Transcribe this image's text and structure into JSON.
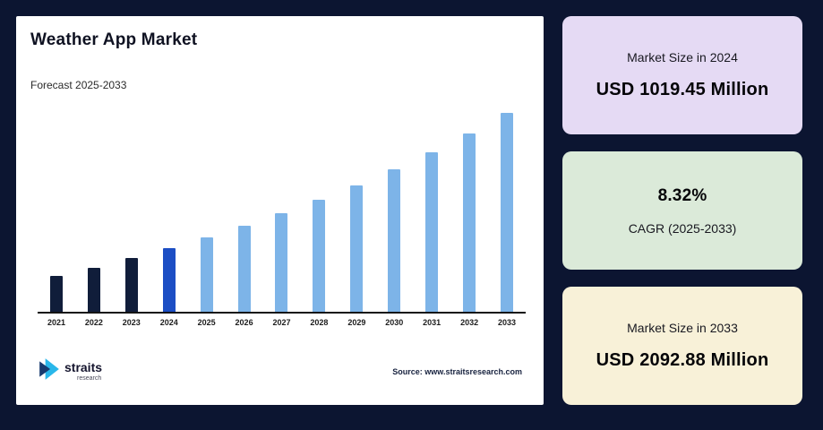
{
  "page": {
    "background": "#0c1531"
  },
  "chart": {
    "title": "Weather App Market",
    "subtitle": "Forecast 2025-2033",
    "source": "Source: www.straitsresearch.com",
    "logo": {
      "name": "straits",
      "sub": "research"
    }
  },
  "chart_data": {
    "type": "bar",
    "title": "Weather App Market",
    "subtitle": "Forecast 2025-2033",
    "unit": "USD Million",
    "categories": [
      "2021",
      "2022",
      "2023",
      "2024",
      "2025",
      "2026",
      "2027",
      "2028",
      "2029",
      "2030",
      "2031",
      "2032",
      "2033"
    ],
    "values": [
      802,
      869,
      941,
      1019.45,
      1104.27,
      1196.14,
      1295.66,
      1403.46,
      1520.23,
      1646.71,
      1783.72,
      1932.13,
      2092.88
    ],
    "colors": [
      "#101d3a",
      "#101d3a",
      "#101d3a",
      "#1c4ec4",
      "#7db4e8",
      "#7db4e8",
      "#7db4e8",
      "#7db4e8",
      "#7db4e8",
      "#7db4e8",
      "#7db4e8",
      "#7db4e8",
      "#7db4e8"
    ],
    "xlabel": "",
    "ylabel": "",
    "grid": false,
    "legend": false,
    "axis_labels_visible": "x-only",
    "known_points": {
      "2024": 1019.45,
      "2033": 2092.88,
      "cagr_2025_2033_pct": 8.32
    }
  },
  "stats": [
    {
      "label": "Market Size in 2024",
      "value": "USD 1019.45 Million",
      "bg": "#e5daf4"
    },
    {
      "label": "CAGR (2025-2033)",
      "value": "8.32%",
      "bg": "#dbead9"
    },
    {
      "label": "Market Size in 2033",
      "value": "USD 2092.88 Million",
      "bg": "#f8f1d8"
    }
  ]
}
